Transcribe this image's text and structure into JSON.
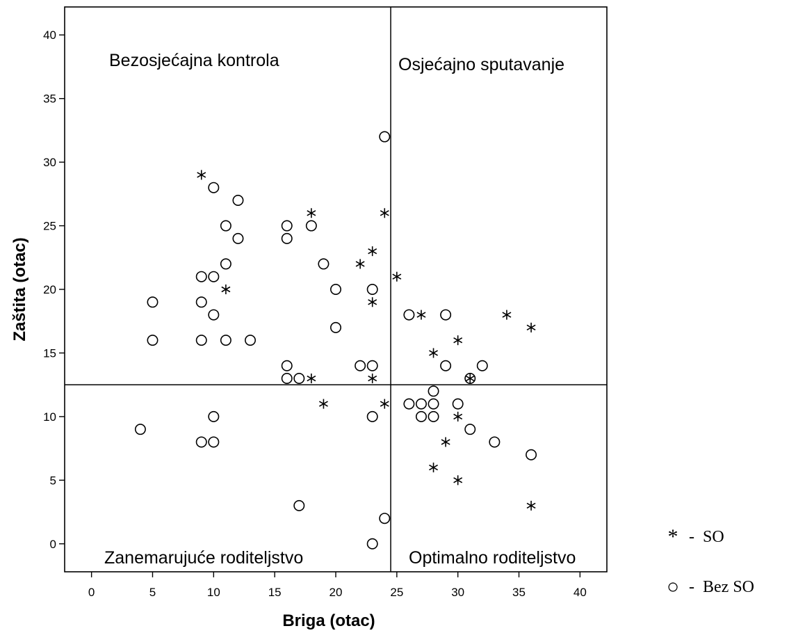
{
  "chart_data": {
    "type": "scatter",
    "xlabel": "Briga (otac)",
    "ylabel": "Zaštita (otac)",
    "xlim": [
      -2.2,
      42.2
    ],
    "ylim": [
      -2.2,
      42.2
    ],
    "xticks": [
      0,
      5,
      10,
      15,
      20,
      25,
      30,
      35,
      40
    ],
    "yticks": [
      0,
      5,
      10,
      15,
      20,
      25,
      30,
      35,
      40
    ],
    "grid": false,
    "reference_lines": {
      "x": 24.5,
      "y": 12.5
    },
    "quadrant_labels": {
      "top_left": "Bezosjećajna kontrola",
      "top_right": "Osjećajno sputavanje",
      "bottom_left": "Zanemarujuće roditeljstvo",
      "bottom_right": "Optimalno roditeljstvo"
    },
    "legend_position": "bottom-right",
    "series": [
      {
        "name": "SO",
        "marker": "star",
        "points": [
          [
            9,
            29
          ],
          [
            18,
            26
          ],
          [
            24,
            26
          ],
          [
            23,
            23
          ],
          [
            22,
            22
          ],
          [
            25,
            21
          ],
          [
            11,
            20
          ],
          [
            23,
            19
          ],
          [
            27,
            18
          ],
          [
            34,
            18
          ],
          [
            36,
            17
          ],
          [
            30,
            16
          ],
          [
            28,
            15
          ],
          [
            18,
            13
          ],
          [
            23,
            13
          ],
          [
            31,
            13
          ],
          [
            19,
            11
          ],
          [
            24,
            11
          ],
          [
            30,
            10
          ],
          [
            29,
            8
          ],
          [
            28,
            6
          ],
          [
            30,
            5
          ],
          [
            36,
            3
          ]
        ]
      },
      {
        "name": "Bez SO",
        "marker": "circle",
        "points": [
          [
            24,
            32
          ],
          [
            10,
            28
          ],
          [
            12,
            27
          ],
          [
            11,
            25
          ],
          [
            16,
            25
          ],
          [
            18,
            25
          ],
          [
            12,
            24
          ],
          [
            16,
            24
          ],
          [
            11,
            22
          ],
          [
            19,
            22
          ],
          [
            9,
            21
          ],
          [
            10,
            21
          ],
          [
            20,
            20
          ],
          [
            23,
            20
          ],
          [
            5,
            19
          ],
          [
            9,
            19
          ],
          [
            10,
            18
          ],
          [
            26,
            18
          ],
          [
            29,
            18
          ],
          [
            20,
            17
          ],
          [
            5,
            16
          ],
          [
            9,
            16
          ],
          [
            11,
            16
          ],
          [
            13,
            16
          ],
          [
            16,
            14
          ],
          [
            22,
            14
          ],
          [
            23,
            14
          ],
          [
            29,
            14
          ],
          [
            32,
            14
          ],
          [
            16,
            13
          ],
          [
            17,
            13
          ],
          [
            31,
            13
          ],
          [
            28,
            12
          ],
          [
            26,
            11
          ],
          [
            27,
            11
          ],
          [
            28,
            11
          ],
          [
            30,
            11
          ],
          [
            10,
            10
          ],
          [
            23,
            10
          ],
          [
            27,
            10
          ],
          [
            28,
            10
          ],
          [
            4,
            9
          ],
          [
            31,
            9
          ],
          [
            9,
            8
          ],
          [
            10,
            8
          ],
          [
            33,
            8
          ],
          [
            36,
            7
          ],
          [
            17,
            3
          ],
          [
            24,
            2
          ],
          [
            23,
            0
          ]
        ]
      }
    ]
  },
  "legend": [
    {
      "symbol": "*",
      "dash": "-",
      "label": "SO"
    },
    {
      "symbol": "○",
      "dash": "-",
      "label": "Bez SO"
    }
  ]
}
